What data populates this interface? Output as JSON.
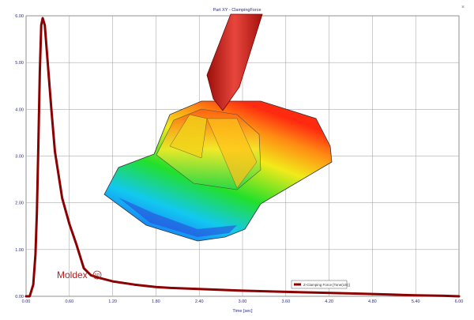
{
  "window": {
    "title": "Part XY - ClampingForce",
    "close_glyph": "×"
  },
  "logo": {
    "text": "Moldex",
    "mark": "3D"
  },
  "colors": {
    "series": "#8b0000",
    "grid": "#9a9a9a",
    "tick_text": "#2a2a8a",
    "nozzle": "#d82a22"
  },
  "chart_data": {
    "type": "line",
    "title": "",
    "xlabel": "Time [sec]",
    "ylabel": "",
    "xlim": [
      0,
      6
    ],
    "ylim": [
      0,
      6
    ],
    "x_ticks": [
      "0.00",
      "0.60",
      "1.20",
      "1.80",
      "2.40",
      "3.00",
      "3.60",
      "4.20",
      "4.80",
      "5.40",
      "6.00"
    ],
    "y_ticks": [
      "0.00",
      "1.00",
      "2.00",
      "3.00",
      "4.00",
      "5.00",
      "6.00"
    ],
    "grid": true,
    "legend_position": "bottom-right",
    "series": [
      {
        "name": "Z-Clamping Force [Tone(US)]",
        "x": [
          0.0,
          0.05,
          0.1,
          0.13,
          0.15,
          0.17,
          0.19,
          0.21,
          0.23,
          0.26,
          0.3,
          0.35,
          0.4,
          0.5,
          0.6,
          0.7,
          0.8,
          0.9,
          1.0,
          1.2,
          1.5,
          1.8,
          2.0,
          2.5,
          3.0,
          3.5,
          4.0,
          4.5,
          5.0,
          5.4,
          5.8,
          6.0
        ],
        "y": [
          0.0,
          0.0,
          0.25,
          0.9,
          1.8,
          3.2,
          4.8,
          5.8,
          5.95,
          5.8,
          5.0,
          4.0,
          3.1,
          2.1,
          1.55,
          1.1,
          0.6,
          0.45,
          0.4,
          0.32,
          0.25,
          0.2,
          0.18,
          0.15,
          0.12,
          0.1,
          0.08,
          0.06,
          0.04,
          0.02,
          0.01,
          0.0
        ]
      }
    ]
  }
}
